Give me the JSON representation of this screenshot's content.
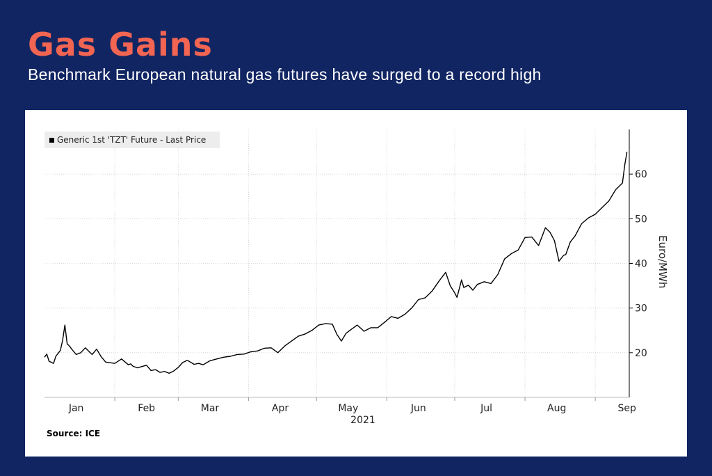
{
  "header": {
    "title": "Gas Gains",
    "subtitle": "Benchmark European natural gas futures have surged to a record high"
  },
  "colors": {
    "background": "#112562",
    "title": "#f26552",
    "line": "#000000"
  },
  "chart_data": {
    "type": "line",
    "title": "",
    "xlabel": "2021",
    "ylabel": "Euro/MWh",
    "y_ticks": [
      20,
      30,
      40,
      50,
      60
    ],
    "ylim": [
      10,
      70
    ],
    "grid": true,
    "legend_position": "top-left",
    "y_axis_position": "right",
    "x_tick_labels": [
      "Jan",
      "Feb",
      "Mar",
      "Apr",
      "May",
      "Jun",
      "Jul",
      "Aug",
      "Sep"
    ],
    "x_tick_dates": [
      "2021-01-15",
      "2021-02-15",
      "2021-03-15",
      "2021-04-15",
      "2021-05-15",
      "2021-06-15",
      "2021-07-15",
      "2021-08-15",
      "2021-09-15"
    ],
    "xlim": [
      "2021-01-01",
      "2021-09-16"
    ],
    "source": "Source: ICE",
    "series": [
      {
        "name": "Generic 1st 'TZT' Future - Last Price",
        "x": [
          "2021-01-01",
          "2021-01-02",
          "2021-01-03",
          "2021-01-05",
          "2021-01-06",
          "2021-01-08",
          "2021-01-09",
          "2021-01-10",
          "2021-01-11",
          "2021-01-12",
          "2021-01-13",
          "2021-01-15",
          "2021-01-17",
          "2021-01-19",
          "2021-01-21",
          "2021-01-22",
          "2021-01-24",
          "2021-01-26",
          "2021-01-28",
          "2021-02-01",
          "2021-02-04",
          "2021-02-07",
          "2021-02-08",
          "2021-02-09",
          "2021-02-11",
          "2021-02-13",
          "2021-02-15",
          "2021-02-17",
          "2021-02-19",
          "2021-02-21",
          "2021-02-23",
          "2021-02-25",
          "2021-02-27",
          "2021-03-01",
          "2021-03-03",
          "2021-03-05",
          "2021-03-08",
          "2021-03-10",
          "2021-03-12",
          "2021-03-15",
          "2021-03-18",
          "2021-03-21",
          "2021-03-24",
          "2021-03-27",
          "2021-03-30",
          "2021-04-02",
          "2021-04-05",
          "2021-04-08",
          "2021-04-11",
          "2021-04-14",
          "2021-04-17",
          "2021-04-20",
          "2021-04-23",
          "2021-04-26",
          "2021-04-29",
          "2021-05-02",
          "2021-05-05",
          "2021-05-08",
          "2021-05-10",
          "2021-05-12",
          "2021-05-14",
          "2021-05-16",
          "2021-05-19",
          "2021-05-22",
          "2021-05-25",
          "2021-05-28",
          "2021-05-31",
          "2021-06-03",
          "2021-06-06",
          "2021-06-09",
          "2021-06-12",
          "2021-06-15",
          "2021-06-18",
          "2021-06-21",
          "2021-06-24",
          "2021-06-27",
          "2021-06-29",
          "2021-07-01",
          "2021-07-02",
          "2021-07-04",
          "2021-07-05",
          "2021-07-07",
          "2021-07-09",
          "2021-07-11",
          "2021-07-14",
          "2021-07-17",
          "2021-07-20",
          "2021-07-23",
          "2021-07-26",
          "2021-07-29",
          "2021-08-01",
          "2021-08-04",
          "2021-08-07",
          "2021-08-10",
          "2021-08-12",
          "2021-08-14",
          "2021-08-16",
          "2021-08-18",
          "2021-08-19",
          "2021-08-21",
          "2021-08-23",
          "2021-08-26",
          "2021-08-29",
          "2021-09-01",
          "2021-09-04",
          "2021-09-07",
          "2021-09-10",
          "2021-09-13",
          "2021-09-14",
          "2021-09-15"
        ],
        "values": [
          19.0,
          19.7,
          18.1,
          17.6,
          19.2,
          20.5,
          22.8,
          26.2,
          22.0,
          21.5,
          20.8,
          19.6,
          20.0,
          21.1,
          20.1,
          19.6,
          20.8,
          19.1,
          17.9,
          17.6,
          18.6,
          17.3,
          17.5,
          17.0,
          16.6,
          16.9,
          17.2,
          16.0,
          16.2,
          15.6,
          15.8,
          15.4,
          15.9,
          16.7,
          17.8,
          18.3,
          17.4,
          17.6,
          17.3,
          18.2,
          18.6,
          19.0,
          19.2,
          19.6,
          19.7,
          20.2,
          20.4,
          21.0,
          21.1,
          20.0,
          21.5,
          22.6,
          23.7,
          24.2,
          25.0,
          26.2,
          26.5,
          26.4,
          24.1,
          22.6,
          24.3,
          25.1,
          26.2,
          24.8,
          25.6,
          25.6,
          26.8,
          28.1,
          27.7,
          28.6,
          30.0,
          31.9,
          32.3,
          33.8,
          36.0,
          38.0,
          35.0,
          33.4,
          32.4,
          36.3,
          34.6,
          35.1,
          34.0,
          35.3,
          35.9,
          35.5,
          37.5,
          41.0,
          42.2,
          43.0,
          45.8,
          45.9,
          44.0,
          48.0,
          47.0,
          45.1,
          40.5,
          41.8,
          42.0,
          44.8,
          46.1,
          48.9,
          50.2,
          51.0,
          52.5,
          54.0,
          56.5,
          58.0,
          62.0,
          65.0
        ]
      }
    ]
  }
}
